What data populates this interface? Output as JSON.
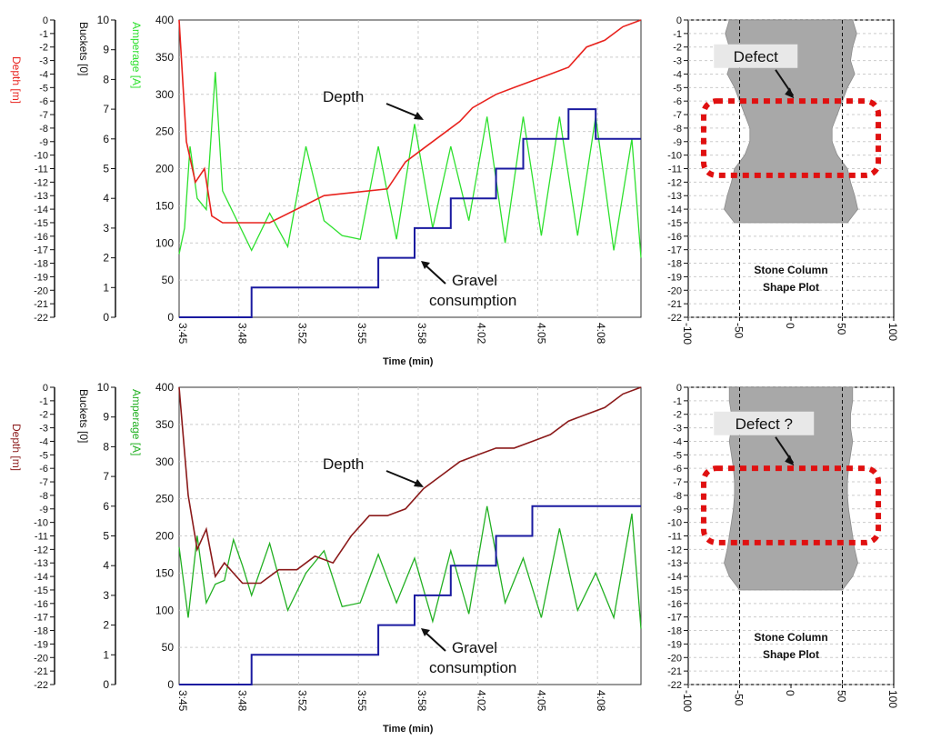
{
  "colors": {
    "depth_top": "#e8231e",
    "depth_bottom": "#8b1a1a",
    "amperage": "#2ee02e",
    "amperage_bottom": "#22b022",
    "buckets": "#1a1aa0",
    "defect_box": "#e01010",
    "shape_fill": "#a8a8a8",
    "grid": "#cccccc"
  },
  "chart_data": [
    {
      "type": "line",
      "panel": "top",
      "xlabel": "Time (min)",
      "x_tick_labels": [
        "3:45",
        "3:48",
        "3:52",
        "3:55",
        "3:58",
        "4:02",
        "4:05",
        "4:08"
      ],
      "y_axes": [
        {
          "label": "Depth [m]",
          "range": [
            -22,
            0
          ],
          "ticks": [
            "0",
            "-1",
            "-2",
            "-3",
            "-4",
            "-5",
            "-6",
            "-7",
            "-8",
            "-9",
            "-10",
            "-11",
            "-12",
            "-13",
            "-14",
            "-15",
            "-16",
            "-17",
            "-18",
            "-19",
            "-20",
            "-21",
            "-22"
          ]
        },
        {
          "label": "Buckets [0]",
          "range": [
            0,
            10
          ],
          "ticks": [
            "0",
            "1",
            "2",
            "3",
            "4",
            "5",
            "6",
            "7",
            "8",
            "9",
            "10"
          ]
        },
        {
          "label": "Amperage [A]",
          "range": [
            0,
            400
          ],
          "ticks": [
            "0",
            "50",
            "100",
            "150",
            "200",
            "250",
            "300",
            "350",
            "400"
          ]
        }
      ],
      "grid": true,
      "series": [
        {
          "name": "Depth",
          "axis": "Depth [m]",
          "x": [
            0,
            0.4,
            0.9,
            1.4,
            1.8,
            2.4,
            3.5,
            5.0,
            8.0,
            11.5,
            12.5,
            13.5,
            14.5,
            15.5,
            16.2,
            17.5,
            18.5,
            19.5,
            20.5,
            21.5,
            22.5,
            23.5,
            24.5,
            25.5
          ],
          "y": [
            0,
            -9,
            -12,
            -11,
            -14.5,
            -15,
            -15,
            -15,
            -13,
            -12.5,
            -10.5,
            -9.5,
            -8.5,
            -7.5,
            -6.5,
            -5.5,
            -5,
            -4.5,
            -4,
            -3.5,
            -2,
            -1.5,
            -0.5,
            0
          ]
        },
        {
          "name": "Amperage",
          "axis": "Amperage [A]",
          "x": [
            0,
            0.3,
            0.6,
            1.0,
            1.5,
            2.0,
            2.4,
            3.0,
            4.0,
            5.0,
            6.0,
            7.0,
            8.0,
            9.0,
            10.0,
            11.0,
            12.0,
            13.0,
            14.0,
            15.0,
            16.0,
            17.0,
            18.0,
            19.0,
            20.0,
            21.0,
            22.0,
            23.0,
            24.0,
            25.0,
            25.5
          ],
          "y": [
            85,
            120,
            230,
            160,
            145,
            330,
            170,
            140,
            90,
            140,
            95,
            230,
            130,
            110,
            105,
            230,
            105,
            260,
            120,
            230,
            130,
            270,
            100,
            270,
            110,
            270,
            110,
            270,
            90,
            240,
            80
          ]
        },
        {
          "name": "Gravel consumption",
          "axis": "Buckets [0]",
          "x": [
            0,
            4.0,
            4.0,
            11.0,
            11.0,
            13.0,
            13.0,
            15.0,
            15.0,
            17.5,
            17.5,
            19.0,
            19.0,
            21.5,
            21.5,
            23.0,
            23.0,
            25.5
          ],
          "y": [
            0,
            0,
            1,
            1,
            2,
            2,
            3,
            3,
            4,
            4,
            5,
            5,
            6,
            6,
            7,
            7,
            6,
            6
          ]
        }
      ],
      "annotations": [
        "Depth",
        "Gravel consumption"
      ]
    },
    {
      "type": "line",
      "panel": "bottom",
      "xlabel": "Time (min)",
      "x_tick_labels": [
        "3:45",
        "3:48",
        "3:52",
        "3:55",
        "3:58",
        "4:02",
        "4:05",
        "4:08"
      ],
      "y_axes": [
        {
          "label": "Depth [m]",
          "range": [
            -22,
            0
          ]
        },
        {
          "label": "Buckets [0]",
          "range": [
            0,
            10
          ]
        },
        {
          "label": "Amperage [A]",
          "range": [
            0,
            400
          ]
        }
      ],
      "grid": true,
      "series": [
        {
          "name": "Depth",
          "axis": "Depth [m]",
          "x": [
            0,
            0.5,
            1.0,
            1.5,
            2.0,
            2.5,
            3.5,
            4.5,
            5.5,
            6.5,
            7.5,
            8.5,
            9.5,
            10.5,
            11.5,
            12.5,
            13.5,
            14.5,
            15.5,
            16.5,
            17.5,
            18.5,
            19.5,
            20.5,
            21.5,
            22.5,
            23.5,
            24.5,
            25.5
          ],
          "y": [
            0,
            -8,
            -12,
            -10.5,
            -14,
            -13,
            -14.5,
            -14.5,
            -13.5,
            -13.5,
            -12.5,
            -13,
            -11,
            -9.5,
            -9.5,
            -9,
            -7.5,
            -6.5,
            -5.5,
            -5,
            -4.5,
            -4.5,
            -4,
            -3.5,
            -2.5,
            -2,
            -1.5,
            -0.5,
            0
          ]
        },
        {
          "name": "Amperage",
          "axis": "Amperage [A]",
          "x": [
            0,
            0.5,
            1.0,
            1.5,
            2.0,
            2.5,
            3.0,
            3.5,
            4.0,
            5.0,
            6.0,
            7.0,
            8.0,
            9.0,
            10.0,
            11.0,
            12.0,
            13.0,
            14.0,
            15.0,
            16.0,
            17.0,
            18.0,
            19.0,
            20.0,
            21.0,
            22.0,
            23.0,
            24.0,
            25.0,
            25.5
          ],
          "y": [
            185,
            90,
            200,
            110,
            135,
            140,
            195,
            160,
            120,
            190,
            100,
            150,
            180,
            105,
            110,
            175,
            110,
            170,
            85,
            180,
            95,
            240,
            110,
            170,
            90,
            210,
            100,
            150,
            90,
            230,
            75
          ]
        },
        {
          "name": "Gravel consumption",
          "axis": "Buckets [0]",
          "x": [
            0,
            4.0,
            4.0,
            11.0,
            11.0,
            13.0,
            13.0,
            15.0,
            15.0,
            17.5,
            17.5,
            19.5,
            19.5,
            22.5,
            22.5,
            25.5
          ],
          "y": [
            0,
            0,
            1,
            1,
            2,
            2,
            3,
            3,
            4,
            4,
            5,
            5,
            6,
            6,
            6,
            6
          ]
        }
      ],
      "annotations": [
        "Depth",
        "Gravel consumption"
      ]
    },
    {
      "type": "area",
      "panel": "top-right",
      "title": "Stone Column Shape Plot",
      "x_ticks": [
        "-100",
        "-50",
        "0",
        "50",
        "100"
      ],
      "y_ticks": [
        "0",
        "-1",
        "-2",
        "-3",
        "-4",
        "-5",
        "-6",
        "-7",
        "-8",
        "-9",
        "-10",
        "-11",
        "-12",
        "-13",
        "-14",
        "-15",
        "-16",
        "-17",
        "-18",
        "-19",
        "-20",
        "-21",
        "-22"
      ],
      "depth": [
        0,
        -1,
        -2,
        -3,
        -4,
        -5,
        -6,
        -7,
        -8,
        -9,
        -10,
        -11,
        -12,
        -13,
        -14,
        -15
      ],
      "half_width": [
        60,
        64,
        60,
        58,
        62,
        55,
        50,
        45,
        40,
        40,
        45,
        55,
        58,
        62,
        65,
        55
      ],
      "annotations": [
        "Defect"
      ]
    },
    {
      "type": "area",
      "panel": "bottom-right",
      "title": "Stone Column Shape Plot",
      "x_ticks": [
        "-100",
        "-50",
        "0",
        "50",
        "100"
      ],
      "depth": [
        0,
        -1,
        -2,
        -3,
        -4,
        -5,
        -6,
        -7,
        -8,
        -9,
        -10,
        -11,
        -12,
        -13,
        -14,
        -15
      ],
      "half_width": [
        60,
        60,
        58,
        58,
        60,
        58,
        56,
        55,
        55,
        56,
        58,
        60,
        62,
        65,
        60,
        50
      ],
      "annotations": [
        "Defect ?"
      ]
    }
  ]
}
